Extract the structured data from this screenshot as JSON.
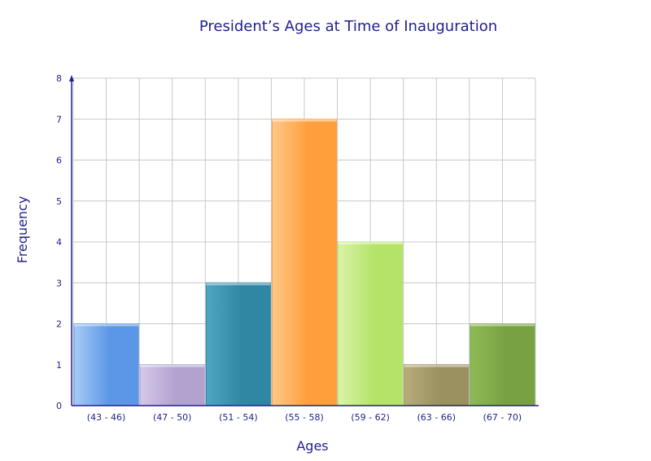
{
  "chart_data": {
    "type": "bar",
    "title": "President’s Ages at Time of Inauguration",
    "xlabel": "Ages",
    "ylabel": "Frequency",
    "categories": [
      "(43 - 46)",
      "(47 - 50)",
      "(51 - 54)",
      "(55 - 58)",
      "(59 - 62)",
      "(63 - 66)",
      "(67 - 70)"
    ],
    "values": [
      2,
      1,
      3,
      7,
      4,
      1,
      2
    ],
    "ylim": [
      0,
      8
    ],
    "yticks": [
      "0",
      "1",
      "2",
      "3",
      "4",
      "5",
      "6",
      "7",
      "8"
    ],
    "grid": true,
    "bar_colors": [
      "#5b97e6",
      "#b3a2d0",
      "#2f87a4",
      "#ff9f3c",
      "#b5e36a",
      "#9a9060",
      "#76a243"
    ],
    "bar_colors_light": [
      "#a7cbf6",
      "#d4c8e8",
      "#4fa6c2",
      "#ffc88a",
      "#d9f4a8",
      "#b8ad7a",
      "#8fbb55"
    ]
  }
}
